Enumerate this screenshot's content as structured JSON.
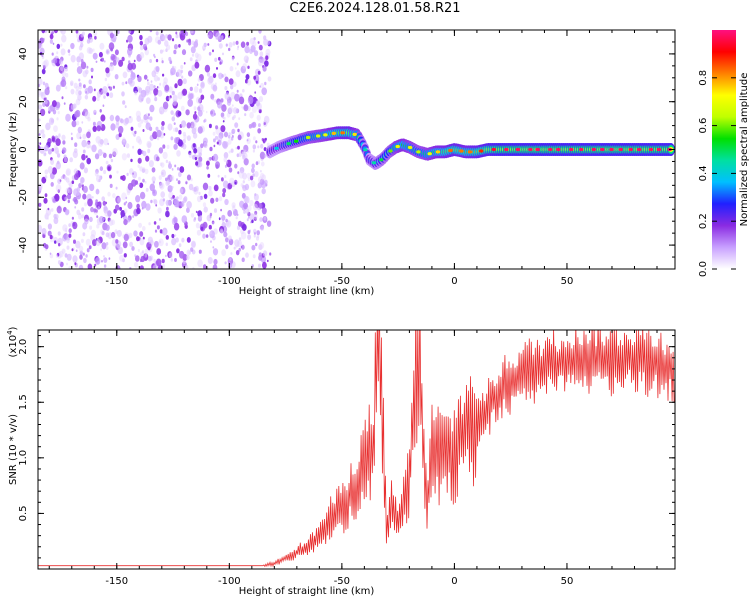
{
  "title": "C2E6.2024.128.01.58.R21",
  "chart_data": [
    {
      "type": "heatmap",
      "xlabel": "Height of straight line (km)",
      "ylabel": "Frequency (Hz)",
      "xlim": [
        -185,
        98
      ],
      "ylim": [
        -50,
        50
      ],
      "xticks": [
        -150,
        -100,
        -50,
        0,
        50
      ],
      "yticks": [
        -40,
        -20,
        0,
        20,
        40
      ],
      "colorbar": {
        "label": "Normalized spectral amplitude",
        "range": [
          0.0,
          1.0
        ],
        "ticks": [
          0.0,
          0.2,
          0.4,
          0.6,
          0.8
        ],
        "colors": [
          "#ffffff",
          "#c8a0ff",
          "#8a2be2",
          "#2020ff",
          "#00c0ff",
          "#00e0a0",
          "#00e000",
          "#c0ff00",
          "#ffff00",
          "#ff8000",
          "#ff0000",
          "#ff1080"
        ]
      },
      "noise_region_x": [
        -185,
        -80
      ],
      "ridge": {
        "x": [
          -82,
          -78,
          -72,
          -65,
          -58,
          -52,
          -47,
          -43,
          -40,
          -38,
          -35,
          -32,
          -29,
          -26,
          -23,
          -20,
          -16,
          -12,
          -8,
          -4,
          0,
          5,
          10,
          15,
          20,
          30,
          40,
          50,
          60,
          70,
          80,
          90,
          97
        ],
        "y": [
          -1,
          1,
          3,
          5,
          6,
          7,
          7,
          6,
          1,
          -4,
          -6,
          -4,
          -1,
          1,
          2,
          1,
          -1,
          -2,
          -1,
          -1,
          0,
          -1,
          -1,
          0,
          0,
          0,
          0,
          0,
          0,
          0,
          0,
          0,
          0
        ],
        "amplitude": [
          0.3,
          0.35,
          0.45,
          0.55,
          0.6,
          0.7,
          0.75,
          0.6,
          0.4,
          0.35,
          0.4,
          0.45,
          0.5,
          0.6,
          0.65,
          0.6,
          0.55,
          0.6,
          0.65,
          0.7,
          0.75,
          0.7,
          0.75,
          0.8,
          0.85,
          0.85,
          0.85,
          0.85,
          0.85,
          0.85,
          0.85,
          0.85,
          0.85
        ]
      }
    },
    {
      "type": "line",
      "xlabel": "Height of straight line (km)",
      "ylabel": "SNR (10 * v/v)",
      "y_scale_label": "(x10",
      "y_scale_exponent": "4",
      "xlim": [
        -185,
        98
      ],
      "ylim": [
        0,
        2.15
      ],
      "xticks": [
        -150,
        -100,
        -50,
        0,
        50
      ],
      "yticks": [
        0.5,
        1.0,
        1.5,
        2.0
      ],
      "color": "#e83030",
      "series": [
        {
          "x": [
            -185,
            -100,
            -85,
            -80,
            -75,
            -70,
            -65,
            -60,
            -55,
            -50,
            -45,
            -40,
            -36,
            -34,
            -32,
            -30,
            -28,
            -25,
            -20,
            -18,
            -16,
            -14,
            -12,
            -10,
            -5,
            0,
            5,
            10,
            15,
            20,
            30,
            40,
            50,
            60,
            70,
            80,
            90,
            98
          ],
          "y": [
            0.03,
            0.03,
            0.03,
            0.05,
            0.1,
            0.15,
            0.2,
            0.3,
            0.45,
            0.55,
            0.7,
            0.95,
            1.1,
            2.1,
            1.3,
            0.3,
            0.6,
            0.4,
            0.8,
            1.5,
            2.0,
            1.2,
            0.5,
            1.1,
            1.0,
            1.05,
            1.25,
            1.3,
            1.45,
            1.6,
            1.75,
            1.82,
            1.87,
            1.9,
            1.88,
            1.9,
            1.85,
            1.8
          ]
        }
      ]
    }
  ]
}
